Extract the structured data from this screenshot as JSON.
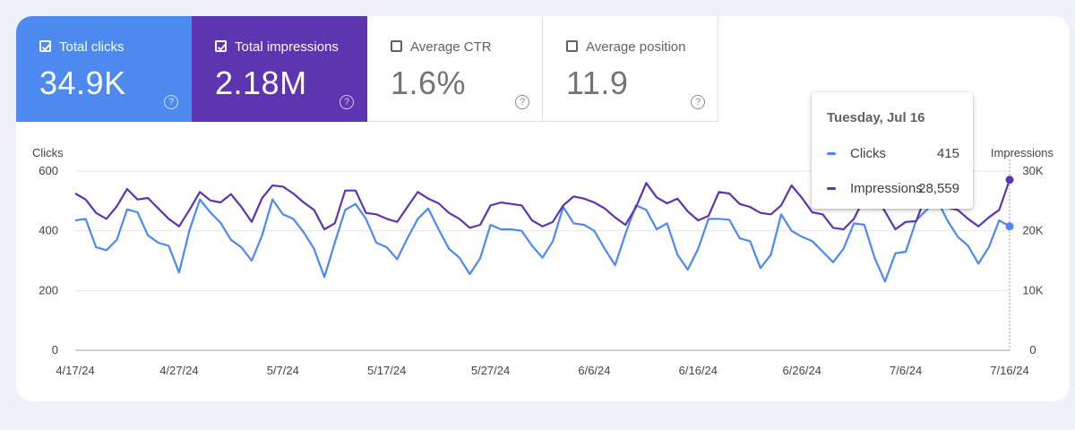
{
  "metrics": [
    {
      "label": "Total clicks",
      "value": "34.9K",
      "checked": true,
      "color": "#4d8af0"
    },
    {
      "label": "Total impressions",
      "value": "2.18M",
      "checked": true,
      "color": "#5e35b1"
    },
    {
      "label": "Average CTR",
      "value": "1.6%",
      "checked": false
    },
    {
      "label": "Average position",
      "value": "11.9",
      "checked": false
    }
  ],
  "help_glyph": "?",
  "tooltip": {
    "date": "Tuesday, Jul 16",
    "rows": [
      {
        "label": "Clicks",
        "value": "415",
        "color": "#4d8af0"
      },
      {
        "label": "Impressions",
        "value": "28,559",
        "color": "#5e35b1"
      }
    ]
  },
  "chart_data": {
    "type": "line",
    "left_axis_label": "Clicks",
    "right_axis_label": "Impressions",
    "left_ticks": [
      "0",
      "200",
      "400",
      "600"
    ],
    "right_ticks": [
      "0",
      "10K",
      "20K",
      "30K"
    ],
    "left_ylim": [
      0,
      600
    ],
    "right_ylim": [
      0,
      30000
    ],
    "x_labels": [
      "4/17/24",
      "4/27/24",
      "5/7/24",
      "5/17/24",
      "5/27/24",
      "6/6/24",
      "6/16/24",
      "6/26/24",
      "7/6/24",
      "7/16/24"
    ],
    "grid": true,
    "series": [
      {
        "name": "Clicks",
        "axis": "left",
        "color": "#4d8af0",
        "values": [
          435,
          440,
          345,
          335,
          370,
          472,
          462,
          385,
          360,
          350,
          260,
          402,
          505,
          462,
          427,
          370,
          345,
          300,
          385,
          505,
          455,
          440,
          395,
          340,
          245,
          360,
          470,
          490,
          440,
          360,
          345,
          305,
          375,
          440,
          475,
          405,
          340,
          310,
          255,
          308,
          420,
          405,
          405,
          400,
          350,
          310,
          365,
          480,
          425,
          420,
          400,
          340,
          285,
          390,
          485,
          470,
          405,
          425,
          320,
          270,
          340,
          440,
          440,
          437,
          375,
          365,
          275,
          320,
          455,
          400,
          380,
          365,
          330,
          295,
          340,
          425,
          420,
          310,
          230,
          325,
          330,
          435,
          470,
          505,
          435,
          380,
          350,
          290,
          345,
          435,
          415
        ]
      },
      {
        "name": "Impressions",
        "axis": "left",
        "color": "#5e35b1",
        "values": [
          525,
          505,
          460,
          440,
          482,
          540,
          505,
          510,
          475,
          440,
          415,
          470,
          530,
          502,
          495,
          523,
          480,
          430,
          510,
          552,
          548,
          525,
          495,
          470,
          405,
          425,
          535,
          535,
          460,
          455,
          440,
          430,
          480,
          530,
          508,
          492,
          460,
          440,
          410,
          420,
          485,
          495,
          490,
          485,
          435,
          415,
          430,
          485,
          515,
          508,
          495,
          475,
          445,
          420,
          478,
          560,
          512,
          492,
          508,
          465,
          435,
          450,
          530,
          525,
          490,
          480,
          460,
          455,
          485,
          552,
          510,
          462,
          455,
          410,
          405,
          440,
          510,
          520,
          465,
          405,
          430,
          432,
          525,
          512,
          478,
          470,
          440,
          415,
          445,
          470,
          571
        ]
      }
    ]
  }
}
